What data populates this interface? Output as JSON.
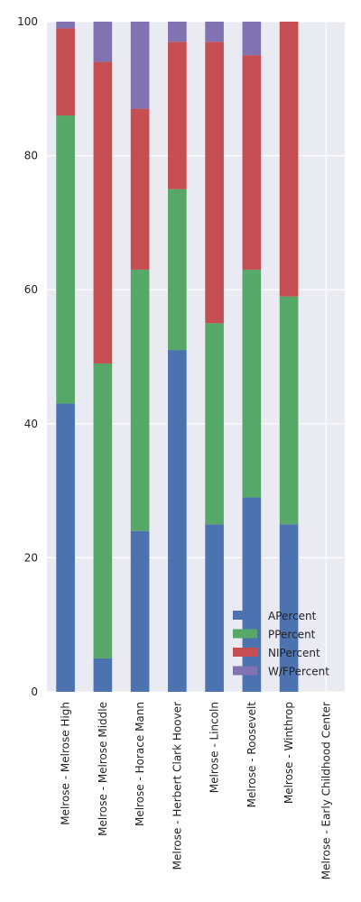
{
  "chart_data": {
    "type": "bar",
    "stacked": true,
    "title": "",
    "xlabel": "",
    "ylabel": "",
    "ylim": [
      0,
      100
    ],
    "yticks": [
      0,
      20,
      40,
      60,
      80,
      100
    ],
    "grid": true,
    "legend_position": "bottom-right",
    "categories": [
      "Melrose - Melrose High",
      "Melrose - Melrose Middle",
      "Melrose - Horace Mann",
      "Melrose - Herbert Clark Hoover",
      "Melrose - Lincoln",
      "Melrose - Roosevelt",
      "Melrose - Winthrop",
      "Melrose - Early Childhood Center"
    ],
    "series": [
      {
        "name": "APercent",
        "color": "#4c72b0",
        "values": [
          43,
          5,
          24,
          51,
          25,
          29,
          25,
          0
        ]
      },
      {
        "name": "PPercent",
        "color": "#55a868",
        "values": [
          43,
          44,
          39,
          24,
          30,
          34,
          34,
          0
        ]
      },
      {
        "name": "NIPercent",
        "color": "#c44e52",
        "values": [
          13,
          45,
          24,
          22,
          42,
          32,
          41,
          0
        ]
      },
      {
        "name": "W/FPercent",
        "color": "#8172b2",
        "values": [
          1,
          6,
          13,
          3,
          3,
          5,
          0,
          0
        ]
      }
    ]
  }
}
